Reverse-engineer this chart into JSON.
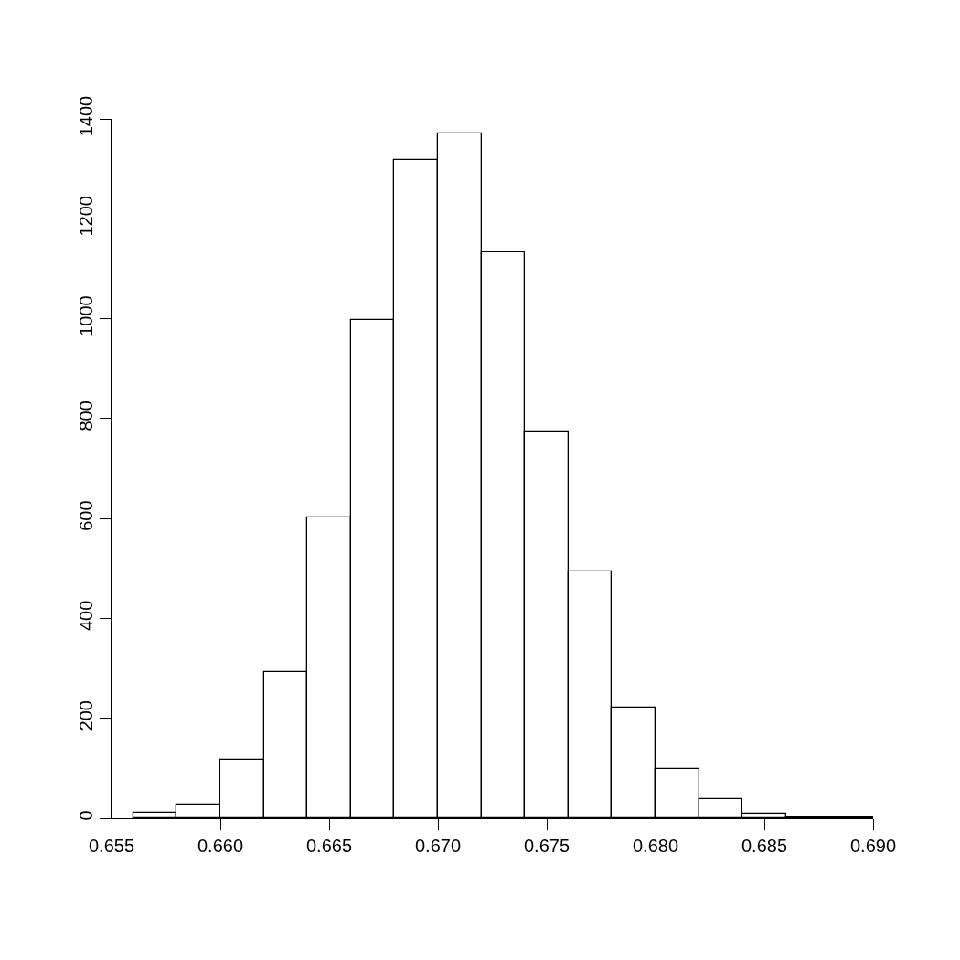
{
  "chart_data": {
    "type": "histogram",
    "bins": [
      0.656,
      0.658,
      0.66,
      0.662,
      0.664,
      0.666,
      0.668,
      0.67,
      0.672,
      0.674,
      0.676,
      0.678,
      0.68,
      0.682,
      0.684,
      0.686,
      0.688,
      0.69
    ],
    "values": [
      11,
      27,
      117,
      293,
      602,
      998,
      1318,
      1371,
      1132,
      775,
      495,
      222,
      99,
      38,
      10,
      2,
      1
    ],
    "color": "#ffffff",
    "xlim": [
      0.655,
      0.69
    ],
    "xticks": [
      {
        "value": 0.655,
        "label": "0.655"
      },
      {
        "value": 0.66,
        "label": "0.660"
      },
      {
        "value": 0.665,
        "label": "0.665"
      },
      {
        "value": 0.67,
        "label": "0.670"
      },
      {
        "value": 0.675,
        "label": "0.675"
      },
      {
        "value": 0.68,
        "label": "0.680"
      },
      {
        "value": 0.685,
        "label": "0.685"
      },
      {
        "value": 0.69,
        "label": "0.690"
      }
    ],
    "ylim": [
      0,
      1400
    ],
    "yticks": [
      0,
      200,
      400,
      600,
      800,
      1000,
      1200,
      1400
    ],
    "grid": false
  }
}
